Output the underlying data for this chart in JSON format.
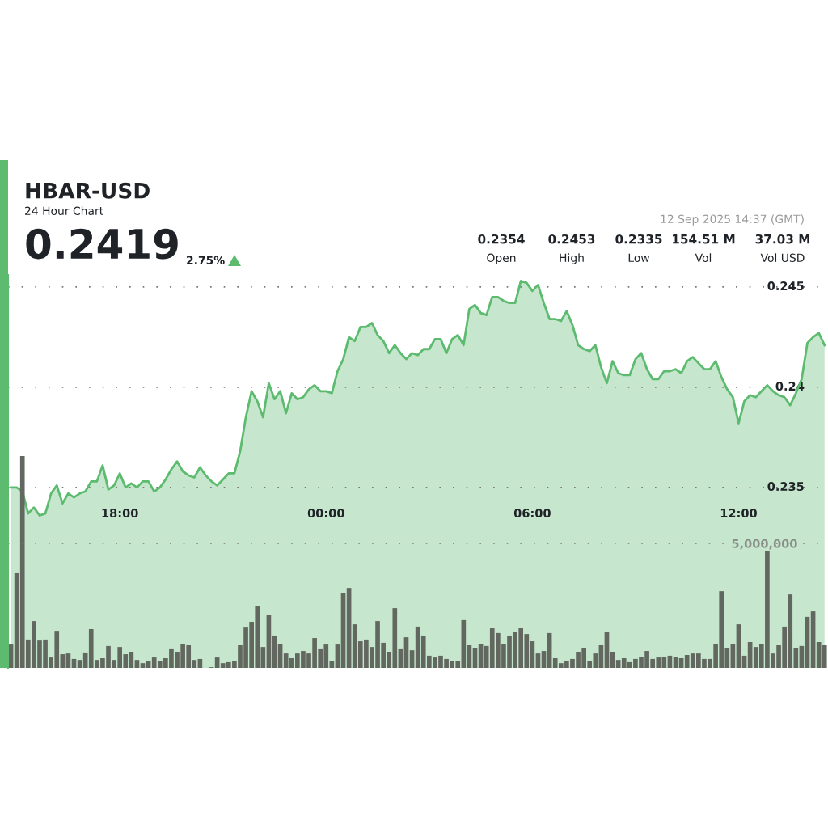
{
  "chart_data": {
    "type": "area",
    "title": "HBAR-USD",
    "subtitle": "24 Hour Chart",
    "annotations": [
      "0.2419",
      "2.75%",
      "0.2354",
      "Open",
      "0.2453",
      "High",
      "0.2335",
      "Low",
      "154.51 M",
      "Vol",
      "37.03 M",
      "Vol USD",
      "12 Sep 2025 14:37 (GMT)"
    ],
    "x": [
      "2025-09-11T14:50",
      "2025-09-11T15:00",
      "2025-09-11T15:10",
      "2025-09-11T15:20",
      "2025-09-11T15:30",
      "2025-09-11T15:40",
      "2025-09-11T15:50",
      "2025-09-11T16:00",
      "2025-09-11T16:10",
      "2025-09-11T16:20",
      "2025-09-11T16:30",
      "2025-09-11T16:40",
      "2025-09-11T16:50",
      "2025-09-11T17:00",
      "2025-09-11T17:10",
      "2025-09-11T17:20",
      "2025-09-11T17:30",
      "2025-09-11T17:40",
      "2025-09-11T17:50",
      "2025-09-11T18:00",
      "2025-09-11T18:10",
      "2025-09-11T18:20",
      "2025-09-11T18:30",
      "2025-09-11T18:40",
      "2025-09-11T18:50",
      "2025-09-11T19:00",
      "2025-09-11T19:10",
      "2025-09-11T19:20",
      "2025-09-11T19:30",
      "2025-09-11T19:40",
      "2025-09-11T19:50",
      "2025-09-11T20:00",
      "2025-09-11T20:10",
      "2025-09-11T20:20",
      "2025-09-11T20:30",
      "2025-09-11T20:40",
      "2025-09-11T20:50",
      "2025-09-11T21:00",
      "2025-09-11T21:10",
      "2025-09-11T21:20",
      "2025-09-11T21:30",
      "2025-09-11T21:40",
      "2025-09-11T21:50",
      "2025-09-11T22:00",
      "2025-09-11T22:10",
      "2025-09-11T22:20",
      "2025-09-11T22:30",
      "2025-09-11T22:40",
      "2025-09-11T22:50",
      "2025-09-11T23:00",
      "2025-09-11T23:10",
      "2025-09-11T23:20",
      "2025-09-11T23:30",
      "2025-09-11T23:40",
      "2025-09-11T23:50",
      "2025-09-12T00:00",
      "2025-09-12T00:10",
      "2025-09-12T00:20",
      "2025-09-12T00:30",
      "2025-09-12T00:40",
      "2025-09-12T00:50",
      "2025-09-12T01:00",
      "2025-09-12T01:10",
      "2025-09-12T01:20",
      "2025-09-12T01:30",
      "2025-09-12T01:40",
      "2025-09-12T01:50",
      "2025-09-12T02:00",
      "2025-09-12T02:10",
      "2025-09-12T02:20",
      "2025-09-12T02:30",
      "2025-09-12T02:40",
      "2025-09-12T02:50",
      "2025-09-12T03:00",
      "2025-09-12T03:10",
      "2025-09-12T03:20",
      "2025-09-12T03:30",
      "2025-09-12T03:40",
      "2025-09-12T03:50",
      "2025-09-12T04:00",
      "2025-09-12T04:10",
      "2025-09-12T04:20",
      "2025-09-12T04:30",
      "2025-09-12T04:40",
      "2025-09-12T04:50",
      "2025-09-12T05:00",
      "2025-09-12T05:10",
      "2025-09-12T05:20",
      "2025-09-12T05:30",
      "2025-09-12T05:40",
      "2025-09-12T05:50",
      "2025-09-12T06:00",
      "2025-09-12T06:10",
      "2025-09-12T06:20",
      "2025-09-12T06:30",
      "2025-09-12T06:40",
      "2025-09-12T06:50",
      "2025-09-12T07:00",
      "2025-09-12T07:10",
      "2025-09-12T07:20",
      "2025-09-12T07:30",
      "2025-09-12T07:40",
      "2025-09-12T07:50",
      "2025-09-12T08:00",
      "2025-09-12T08:10",
      "2025-09-12T08:20",
      "2025-09-12T08:30",
      "2025-09-12T08:40",
      "2025-09-12T08:50",
      "2025-09-12T09:00",
      "2025-09-12T09:10",
      "2025-09-12T09:20",
      "2025-09-12T09:30",
      "2025-09-12T09:40",
      "2025-09-12T09:50",
      "2025-09-12T10:00",
      "2025-09-12T10:10",
      "2025-09-12T10:20",
      "2025-09-12T10:30",
      "2025-09-12T10:40",
      "2025-09-12T10:50",
      "2025-09-12T11:00",
      "2025-09-12T11:10",
      "2025-09-12T11:20",
      "2025-09-12T11:30",
      "2025-09-12T11:40",
      "2025-09-12T11:50",
      "2025-09-12T12:00",
      "2025-09-12T12:10",
      "2025-09-12T12:20",
      "2025-09-12T12:30",
      "2025-09-12T12:40",
      "2025-09-12T12:50",
      "2025-09-12T13:00",
      "2025-09-12T13:10",
      "2025-09-12T13:20",
      "2025-09-12T13:30",
      "2025-09-12T13:40",
      "2025-09-12T13:50",
      "2025-09-12T14:00",
      "2025-09-12T14:10",
      "2025-09-12T14:20",
      "2025-09-12T14:30"
    ],
    "series": [
      {
        "color": "#5dbb6f",
        "values": [
          0.235,
          0.235,
          0.2348,
          0.2337,
          0.234,
          0.2336,
          0.2337,
          0.2347,
          0.2351,
          0.2342,
          0.2347,
          0.2345,
          0.2347,
          0.2348,
          0.2353,
          0.2353,
          0.2361,
          0.2349,
          0.2351,
          0.2357,
          0.235,
          0.2352,
          0.235,
          0.2353,
          0.2353,
          0.2348,
          0.235,
          0.2354,
          0.2359,
          0.2363,
          0.2358,
          0.2356,
          0.2355,
          0.236,
          0.2356,
          0.2353,
          0.2351,
          0.2354,
          0.2357,
          0.2357,
          0.2368,
          0.2385,
          0.2398,
          0.2393,
          0.2385,
          0.2402,
          0.2394,
          0.2398,
          0.2387,
          0.2397,
          0.2394,
          0.2395,
          0.2399,
          0.2401,
          0.2398,
          0.2398,
          0.2397,
          0.2408,
          0.2414,
          0.2425,
          0.2423,
          0.243,
          0.243,
          0.2432,
          0.2426,
          0.2423,
          0.2417,
          0.2421,
          0.2417,
          0.2414,
          0.2417,
          0.2416,
          0.2419,
          0.2419,
          0.2424,
          0.2424,
          0.2417,
          0.2424,
          0.2426,
          0.2421,
          0.2439,
          0.2441,
          0.2437,
          0.2436,
          0.2445,
          0.2445,
          0.2443,
          0.2442,
          0.2442,
          0.2453,
          0.2452,
          0.2448,
          0.2451,
          0.2442,
          0.2434,
          0.2434,
          0.2433,
          0.2438,
          0.2431,
          0.2421,
          0.2419,
          0.2418,
          0.2421,
          0.241,
          0.2402,
          0.2413,
          0.2407,
          0.2406,
          0.2406,
          0.2414,
          0.2417,
          0.2409,
          0.2404,
          0.2404,
          0.2408,
          0.2408,
          0.2409,
          0.2407,
          0.2413,
          0.2415,
          0.2412,
          0.2409,
          0.2409,
          0.2413,
          0.2405,
          0.2399,
          0.2395,
          0.2382,
          0.2393,
          0.2396,
          0.2395,
          0.2398,
          0.2401,
          0.2398,
          0.2396,
          0.2395,
          0.2391,
          0.2397,
          0.2404,
          0.2422,
          0.2425,
          0.2427,
          0.2421
        ]
      },
      {
        "type": "bar",
        "axis": "y2",
        "color": "#62685f",
        "values": [
          940000,
          3800000,
          8510000,
          1140000,
          1880000,
          1100000,
          1140000,
          420000,
          1490000,
          550000,
          580000,
          360000,
          320000,
          620000,
          1560000,
          320000,
          390000,
          880000,
          320000,
          840000,
          550000,
          650000,
          320000,
          190000,
          290000,
          420000,
          260000,
          390000,
          750000,
          650000,
          970000,
          910000,
          320000,
          360000,
          null,
          30000,
          420000,
          190000,
          230000,
          290000,
          910000,
          1620000,
          1850000,
          2500000,
          840000,
          2140000,
          1300000,
          970000,
          580000,
          390000,
          580000,
          680000,
          580000,
          1200000,
          750000,
          940000,
          290000,
          940000,
          3020000,
          3210000,
          1750000,
          1070000,
          1140000,
          840000,
          1880000,
          1010000,
          650000,
          2400000,
          750000,
          1230000,
          710000,
          1660000,
          1300000,
          490000,
          420000,
          490000,
          360000,
          290000,
          260000,
          1920000,
          910000,
          810000,
          970000,
          880000,
          1590000,
          1400000,
          970000,
          1300000,
          1460000,
          1590000,
          1360000,
          1070000,
          580000,
          680000,
          1400000,
          390000,
          190000,
          260000,
          360000,
          650000,
          810000,
          260000,
          580000,
          910000,
          1430000,
          650000,
          320000,
          390000,
          230000,
          360000,
          450000,
          680000,
          360000,
          420000,
          450000,
          490000,
          450000,
          390000,
          520000,
          580000,
          580000,
          360000,
          360000,
          970000,
          3080000,
          780000,
          970000,
          1750000,
          490000,
          1040000,
          840000,
          970000,
          4710000,
          580000,
          910000,
          1660000,
          2950000,
          780000,
          880000,
          2050000,
          2270000,
          1040000,
          910000
        ]
      }
    ],
    "xlim": [
      "2025-09-11T14:45",
      "2025-09-12T14:36"
    ],
    "xticks": [
      {
        "value": "2025-09-11T18:00",
        "label": "18:00"
      },
      {
        "value": "2025-09-12T00:00",
        "label": "00:00"
      },
      {
        "value": "2025-09-12T06:00",
        "label": "06:00"
      },
      {
        "value": "2025-09-12T12:00",
        "label": "12:00"
      }
    ],
    "ylim": [
      0.226,
      0.2456
    ],
    "yticks": [
      0.235,
      0.24,
      0.245
    ],
    "y2lim": [
      0,
      15780000
    ],
    "y2ticks": [
      {
        "value": 5000000,
        "label": "5,000,000"
      }
    ],
    "grid": "y",
    "legend": false
  }
}
